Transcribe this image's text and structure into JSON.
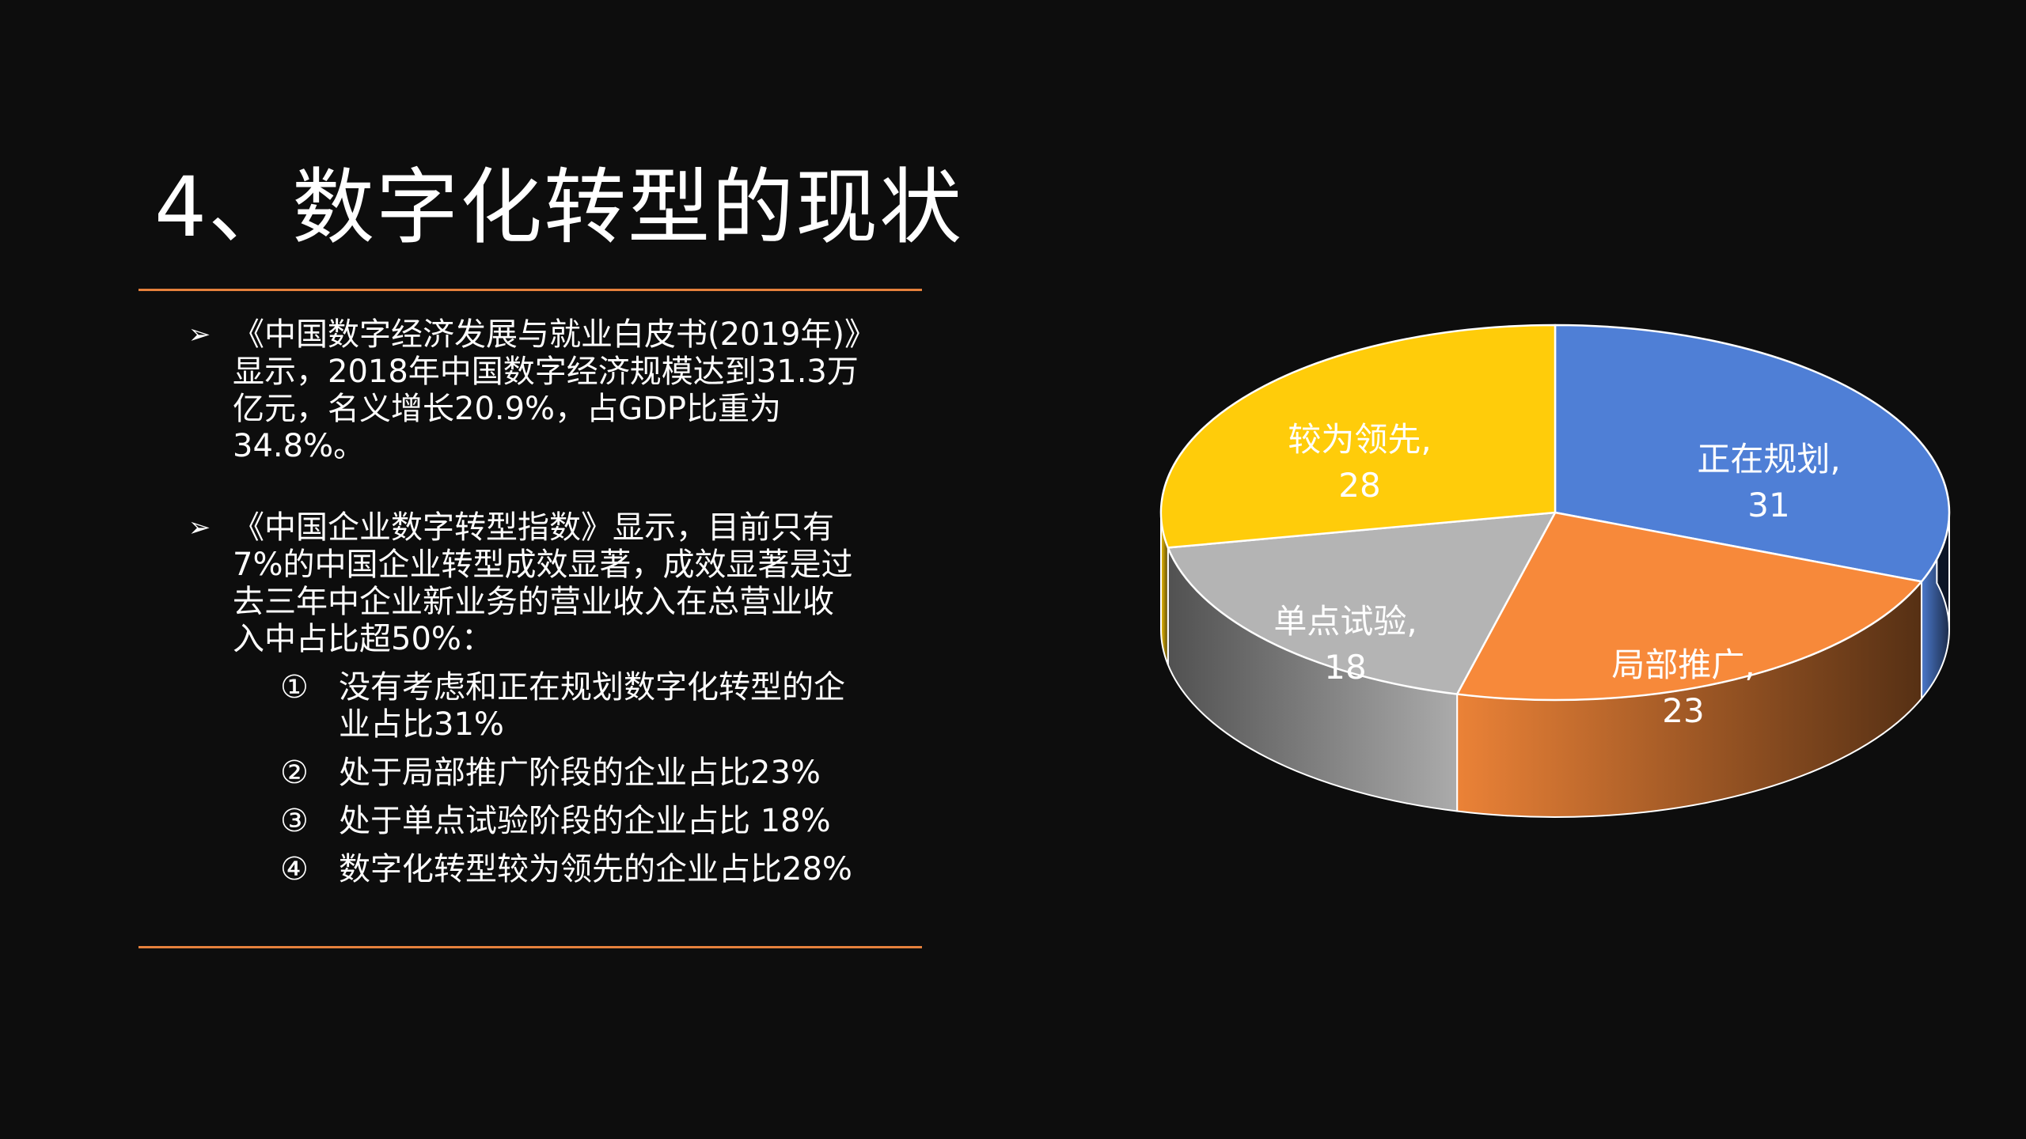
{
  "title": "4、数字化转型的现状",
  "bullets": {
    "arrow": "➢",
    "b1": {
      "line1": "《中国数字经济发展与就业白皮书(2019年)》",
      "line2": "显示，2018年中国数字经济规模达到31.3万",
      "line3": "亿元，名义增长20.9%，占GDP比重为34.8%。"
    },
    "b2": {
      "line1": "《中国企业数字转型指数》显示，目前只有",
      "line2": "7%的中国企业转型成效显著，成效显著是过",
      "line3": "去三年中企业新业务的营业收入在总营业收",
      "line4": "入中占比超50%：",
      "items": [
        {
          "num": "①",
          "line1": "没有考虑和正在规划数字化转型的企",
          "line2": "业占比31%"
        },
        {
          "num": "②",
          "line1": "处于局部推广阶段的企业占比23%",
          "line2": ""
        },
        {
          "num": "③",
          "line1": "处于单点试验阶段的企业占比 18%",
          "line2": ""
        },
        {
          "num": "④",
          "line1": "数字化转型较为领先的企业占比28%",
          "line2": ""
        }
      ]
    }
  },
  "chart_data": {
    "type": "pie",
    "style": "3d-exploded-none",
    "start": "12 o'clock, clockwise",
    "categories": [
      "正在规划",
      "局部推广",
      "单点试验",
      "较为领先"
    ],
    "values": [
      31,
      23,
      18,
      28
    ],
    "labels": [
      {
        "name": "正在规划,",
        "value": "31"
      },
      {
        "name": "局部推广,",
        "value": "23"
      },
      {
        "name": "单点试验,",
        "value": "18"
      },
      {
        "name": "较为领先,",
        "value": "28"
      }
    ],
    "colors": [
      "#4f7fd6",
      "#f7893a",
      "#b4b4b4",
      "#ffcc0a"
    ],
    "title": "",
    "legend": "none"
  },
  "colors": {
    "background": "#0d0d0d",
    "rule": "#e5803c",
    "text": "#ffffff"
  }
}
